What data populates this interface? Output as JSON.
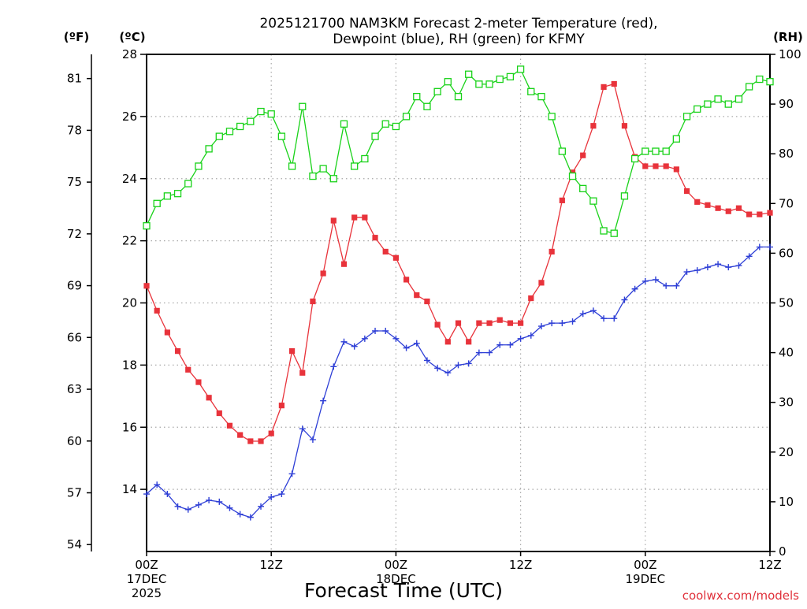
{
  "chart_data": {
    "type": "line",
    "title_lines": [
      "2025121700 NAM3KM Forecast 2-meter Temperature (red),",
      "Dewpoint (blue), RH (green) for KFMY"
    ],
    "xlabel": "Forecast Time (UTC)",
    "credit": "coolwx.com/models",
    "x_range_hours": [
      0,
      60
    ],
    "x_ticks": [
      {
        "hour": 0,
        "lines": [
          "00Z",
          "17DEC",
          "2025"
        ]
      },
      {
        "hour": 12,
        "lines": [
          "12Z"
        ]
      },
      {
        "hour": 24,
        "lines": [
          "00Z",
          "18DEC"
        ]
      },
      {
        "hour": 36,
        "lines": [
          "12Z"
        ]
      },
      {
        "hour": 48,
        "lines": [
          "00Z",
          "19DEC"
        ]
      },
      {
        "hour": 60,
        "lines": [
          "12Z"
        ]
      }
    ],
    "axes": {
      "fahrenheit": {
        "label": "(ºF)",
        "ticks": [
          "54",
          "57",
          "60",
          "63",
          "66",
          "69",
          "72",
          "75",
          "78",
          "81"
        ]
      },
      "celsius": {
        "label": "(ºC)",
        "range": [
          12,
          28
        ],
        "ticks": [
          "14",
          "16",
          "18",
          "20",
          "22",
          "24",
          "26",
          "28"
        ]
      },
      "rh": {
        "label": "(RH)",
        "range": [
          0,
          100
        ],
        "ticks": [
          "0",
          "10",
          "20",
          "30",
          "40",
          "50",
          "60",
          "70",
          "80",
          "90",
          "100"
        ]
      }
    },
    "series": [
      {
        "name": "2-meter Temperature",
        "unit": "C",
        "color": "#e8333b",
        "marker": "filled-square",
        "axis": "celsius",
        "x": [
          0,
          1,
          2,
          3,
          4,
          5,
          6,
          7,
          8,
          9,
          10,
          11,
          12,
          13,
          14,
          15,
          16,
          17,
          18,
          19,
          20,
          21,
          22,
          23,
          24,
          25,
          26,
          27,
          28,
          29,
          30,
          31,
          32,
          33,
          34,
          35,
          36,
          37,
          38,
          39,
          40,
          41,
          42,
          43,
          44,
          45,
          46,
          47,
          48,
          49,
          50,
          51,
          52,
          53,
          54,
          55,
          56,
          57,
          58,
          59,
          60
        ],
        "values": [
          20.55,
          19.75,
          19.05,
          18.45,
          17.85,
          17.45,
          16.95,
          16.45,
          16.05,
          15.75,
          15.55,
          15.55,
          15.8,
          16.7,
          18.45,
          17.75,
          20.05,
          20.95,
          22.65,
          21.25,
          22.75,
          22.75,
          22.1,
          21.65,
          21.45,
          20.75,
          20.25,
          20.05,
          19.3,
          18.75,
          19.35,
          18.75,
          19.35,
          19.35,
          19.45,
          19.35,
          19.35,
          20.15,
          20.65,
          21.65,
          23.3,
          24.2,
          24.75,
          25.7,
          26.95,
          27.05,
          25.7,
          24.7,
          24.4,
          24.4,
          24.4,
          24.3,
          23.6,
          23.25,
          23.15,
          23.05,
          22.95,
          23.05,
          22.85,
          22.85,
          22.9
        ]
      },
      {
        "name": "Dewpoint",
        "unit": "C",
        "color": "#2e3fd6",
        "marker": "plus",
        "axis": "celsius",
        "x": [
          0,
          1,
          2,
          3,
          4,
          5,
          6,
          7,
          8,
          9,
          10,
          11,
          12,
          13,
          14,
          15,
          16,
          17,
          18,
          19,
          20,
          21,
          22,
          23,
          24,
          25,
          26,
          27,
          28,
          29,
          30,
          31,
          32,
          33,
          34,
          35,
          36,
          37,
          38,
          39,
          40,
          41,
          42,
          43,
          44,
          45,
          46,
          47,
          48,
          49,
          50,
          51,
          52,
          53,
          54,
          55,
          56,
          57,
          58,
          59,
          60
        ],
        "values": [
          13.85,
          14.15,
          13.85,
          13.45,
          13.35,
          13.5,
          13.65,
          13.6,
          13.4,
          13.2,
          13.1,
          13.45,
          13.75,
          13.85,
          14.5,
          15.95,
          15.6,
          16.85,
          17.95,
          18.75,
          18.6,
          18.85,
          19.1,
          19.1,
          18.85,
          18.55,
          18.7,
          18.15,
          17.9,
          17.75,
          18.0,
          18.05,
          18.4,
          18.4,
          18.65,
          18.65,
          18.85,
          18.95,
          19.25,
          19.35,
          19.35,
          19.4,
          19.65,
          19.75,
          19.5,
          19.5,
          20.1,
          20.45,
          20.7,
          20.75,
          20.55,
          20.55,
          21.0,
          21.05,
          21.15,
          21.25,
          21.15,
          21.2,
          21.5,
          21.8,
          21.8
        ]
      },
      {
        "name": "RH",
        "unit": "%",
        "color": "#19d219",
        "marker": "open-square",
        "axis": "rh",
        "x": [
          0,
          1,
          2,
          3,
          4,
          5,
          6,
          7,
          8,
          9,
          10,
          11,
          12,
          13,
          14,
          15,
          16,
          17,
          18,
          19,
          20,
          21,
          22,
          23,
          24,
          25,
          26,
          27,
          28,
          29,
          30,
          31,
          32,
          33,
          34,
          35,
          36,
          37,
          38,
          39,
          40,
          41,
          42,
          43,
          44,
          45,
          46,
          47,
          48,
          49,
          50,
          51,
          52,
          53,
          54,
          55,
          56,
          57,
          58,
          59,
          60
        ],
        "values": [
          65.5,
          70,
          71.5,
          72,
          74,
          77.5,
          81,
          83.5,
          84.5,
          85.5,
          86.5,
          88.5,
          88,
          83.5,
          77.5,
          89.5,
          75.5,
          77,
          75,
          86,
          77.5,
          79,
          83.5,
          86,
          85.5,
          87.5,
          91.5,
          89.5,
          92.5,
          94.5,
          91.5,
          96,
          94,
          94,
          95,
          95.5,
          97,
          92.5,
          91.5,
          87.5,
          80.5,
          75.5,
          73,
          70.5,
          64.5,
          64,
          71.5,
          79,
          80.5,
          80.5,
          80.5,
          83,
          87.5,
          89,
          90,
          91,
          90,
          91,
          93.5,
          95,
          94.5
        ]
      }
    ]
  }
}
